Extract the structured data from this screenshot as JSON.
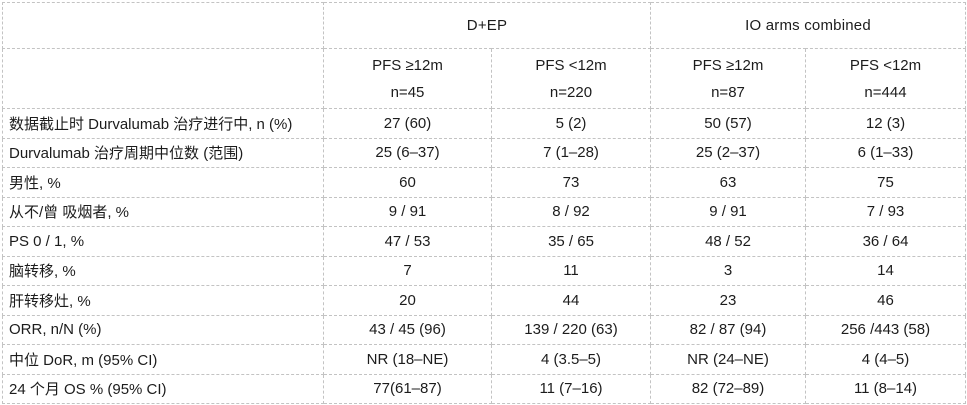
{
  "colors": {
    "border": "#c3c3c3",
    "text": "#1c1c1c",
    "background": "#ffffff"
  },
  "chart_data": {
    "type": "table",
    "column_groups": [
      {
        "label": "D+EP",
        "span": 2
      },
      {
        "label": "IO arms combined",
        "span": 2
      }
    ],
    "columns": [
      {
        "header": "PFS ≥12m",
        "n": "n=45"
      },
      {
        "header": "PFS <12m",
        "n": "n=220"
      },
      {
        "header": "PFS ≥12m",
        "n": "n=87"
      },
      {
        "header": "PFS <12m",
        "n": "n=444"
      }
    ],
    "rows": [
      {
        "label": "数据截止时 Durvalumab 治疗进行中, n (%)",
        "values": [
          "27 (60)",
          "5 (2)",
          "50 (57)",
          "12 (3)"
        ]
      },
      {
        "label": "Durvalumab 治疗周期中位数 (范围)",
        "values": [
          "25 (6–37)",
          "7 (1–28)",
          "25 (2–37)",
          "6 (1–33)"
        ]
      },
      {
        "label": "男性, %",
        "values": [
          "60",
          "73",
          "63",
          "75"
        ]
      },
      {
        "label": "从不/曾 吸烟者, %",
        "values": [
          "9 / 91",
          "8 / 92",
          "9 / 91",
          "7 / 93"
        ]
      },
      {
        "label": "PS 0 / 1, %",
        "values": [
          "47 / 53",
          "35 / 65",
          "48 / 52",
          "36 / 64"
        ]
      },
      {
        "label": "脑转移, %",
        "values": [
          "7",
          "11",
          "3",
          "14"
        ]
      },
      {
        "label": "肝转移灶, %",
        "values": [
          "20",
          "44",
          "23",
          "46"
        ]
      },
      {
        "label": "ORR, n/N (%)",
        "values": [
          "43 / 45 (96)",
          "139 / 220 (63)",
          "82 / 87 (94)",
          "256 /443 (58)"
        ]
      },
      {
        "label": "中位 DoR, m (95% CI)",
        "values": [
          "NR (18–NE)",
          "4 (3.5–5)",
          "NR (24–NE)",
          "4 (4–5)"
        ]
      },
      {
        "label": "24 个月 OS % (95% CI)",
        "values": [
          "77(61–87)",
          "11 (7–16)",
          "82 (72–89)",
          "11 (8–14)"
        ]
      }
    ]
  }
}
